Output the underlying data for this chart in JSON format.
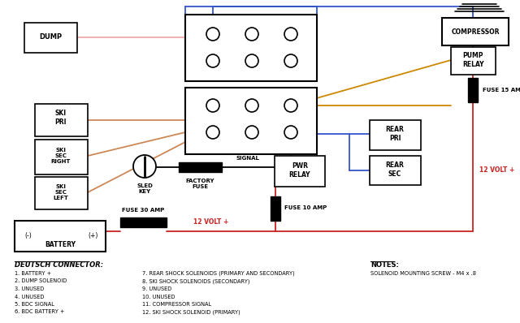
{
  "bg_color": "#ffffff",
  "line_color": "#000000",
  "red_wire": "#cc2222",
  "blue_wire": "#3355cc",
  "orange_wire": "#cc8800",
  "pink_wire": "#f0aaaa",
  "tan_wire": "#cc8855",
  "notes_title": "NOTES:",
  "notes_text": "SOLENOID MOUNTING SCREW - M4 x .8",
  "deutsch_title": "DEUTSCH CONNECTOR:",
  "deutsch_items_col1": [
    "1. BATTERY +",
    "2. DUMP SOLENOID",
    "3. UNUSED",
    "4. UNUSED",
    "5. BDC SIGNAL",
    "6. BDC BATTERY +"
  ],
  "deutsch_items_col2": [
    "7. REAR SHOCK SOLENOIDS (PRIMARY AND SECONDARY)",
    "8. SKI SHOCK SOLENOIDS (SECONDARY)",
    "9. UNUSED",
    "10. UNUSED",
    "11. COMPRESSOR SIGNAL",
    "12. SKI SHOCK SOLENOID (PRIMARY)"
  ]
}
